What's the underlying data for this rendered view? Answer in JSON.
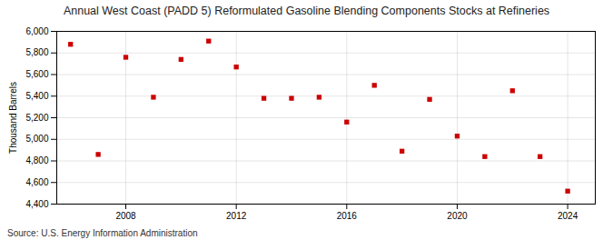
{
  "chart_data": {
    "type": "scatter",
    "title": "Annual West Coast (PADD 5) Reformulated Gasoline Blending Components Stocks at Refineries",
    "ylabel": "Thousand Barrels",
    "caption": "Source: U.S. Energy Information Administration",
    "x": [
      2006,
      2007,
      2008,
      2009,
      2010,
      2011,
      2012,
      2013,
      2014,
      2015,
      2016,
      2017,
      2018,
      2019,
      2020,
      2021,
      2022,
      2023,
      2024
    ],
    "values": [
      5880,
      4860,
      5760,
      5390,
      5740,
      5910,
      5670,
      5380,
      5380,
      5390,
      5160,
      5500,
      4890,
      5370,
      5030,
      4840,
      5450,
      4840,
      4520
    ],
    "color": "#cc0000",
    "marker": "square",
    "xlim": [
      2005.5,
      2025
    ],
    "xticks": [
      2008,
      2012,
      2016,
      2020,
      2024
    ],
    "ylim": [
      4400,
      6000
    ],
    "yticks": [
      {
        "value": 4400,
        "label": "4,400"
      },
      {
        "value": 4600,
        "label": "4,600"
      },
      {
        "value": 4800,
        "label": "4,800"
      },
      {
        "value": 5000,
        "label": "5,000"
      },
      {
        "value": 5200,
        "label": "5,200"
      },
      {
        "value": 5400,
        "label": "5,400"
      },
      {
        "value": 5600,
        "label": "5,600"
      },
      {
        "value": 5800,
        "label": "5,800"
      },
      {
        "value": 6000,
        "label": "6,000"
      }
    ],
    "grid": true
  }
}
